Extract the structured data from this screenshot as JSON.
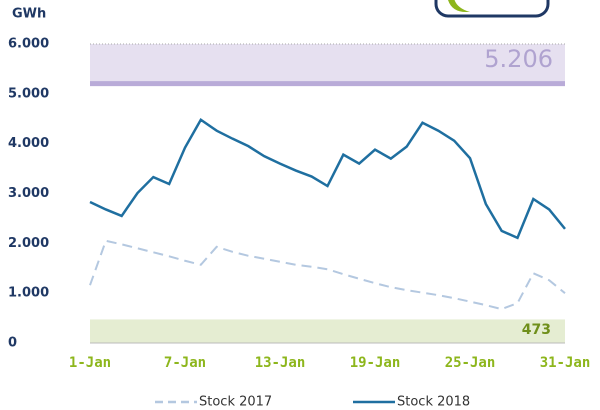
{
  "chart_data": {
    "type": "line",
    "y_axis_label": "GWh",
    "categories": [
      "1-Jan",
      null,
      null,
      null,
      null,
      null,
      "7-Jan",
      null,
      null,
      null,
      null,
      null,
      "13-Jan",
      null,
      null,
      null,
      null,
      null,
      "19-Jan",
      null,
      null,
      null,
      null,
      null,
      "25-Jan",
      null,
      null,
      null,
      null,
      null,
      "31-Jan"
    ],
    "series": [
      {
        "name": "Stock 2017",
        "color": "#b4c8e0",
        "dashed": true,
        "values": [
          1160,
          2050,
          1980,
          1900,
          1820,
          1740,
          1650,
          1570,
          1930,
          1830,
          1750,
          1690,
          1630,
          1570,
          1530,
          1480,
          1380,
          1290,
          1200,
          1120,
          1060,
          1010,
          960,
          900,
          830,
          760,
          680,
          800,
          1400,
          1260,
          1000
        ]
      },
      {
        "name": "Stock 2018",
        "color": "#1f6fa0",
        "dashed": false,
        "values": [
          2830,
          2680,
          2550,
          3010,
          3330,
          3190,
          3920,
          4480,
          4260,
          4100,
          3950,
          3750,
          3600,
          3460,
          3340,
          3150,
          3780,
          3600,
          3880,
          3700,
          3940,
          4420,
          4260,
          4060,
          3710,
          2790,
          2250,
          2110,
          2890,
          2680,
          2290
        ]
      }
    ],
    "bands": [
      {
        "value": 5206,
        "label": "5.206",
        "color": "#e6e0f0",
        "line_color": "#b9abd8",
        "text_color": "#b0a3d0",
        "region": "above"
      },
      {
        "value": 473,
        "label": "473",
        "color": "#e5edd2",
        "text_color": "#6f8f1a",
        "region": "below"
      }
    ],
    "ylim": [
      0,
      6000
    ],
    "yticks": [
      0,
      {
        "value": 1000,
        "label": "1.000"
      },
      {
        "value": 2000,
        "label": "2.000"
      },
      {
        "value": 3000,
        "label": "3.000"
      },
      {
        "value": 4000,
        "label": "4.000"
      },
      {
        "value": 5000,
        "label": "5.000"
      },
      {
        "value": 6000,
        "label": "6.000"
      }
    ],
    "grid": false,
    "legend": "bottom"
  }
}
